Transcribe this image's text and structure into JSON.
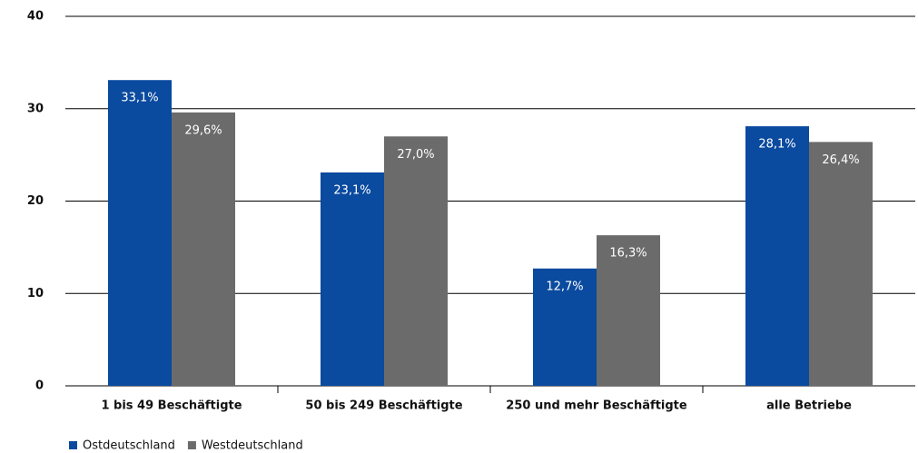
{
  "chart_data": {
    "type": "bar",
    "categories": [
      "1 bis 49 Beschäftigte",
      "50 bis 249 Beschäftigte",
      "250 und mehr Beschäftigte",
      "alle Betriebe"
    ],
    "series": [
      {
        "name": "Ostdeutschland",
        "color": "#0a4a9f",
        "values": [
          33.1,
          23.1,
          12.7,
          28.1
        ],
        "value_labels": [
          "33,1%",
          "23,1%",
          "12,7%",
          "28,1%"
        ]
      },
      {
        "name": "Westdeutschland",
        "color": "#6b6b6b",
        "values": [
          29.6,
          27.0,
          16.3,
          26.4
        ],
        "value_labels": [
          "29,6%",
          "27,0%",
          "16,3%",
          "26,4%"
        ]
      }
    ],
    "ylim": [
      0,
      40
    ],
    "yticks": [
      0,
      10,
      20,
      30,
      40
    ],
    "grid": true,
    "legend": "bottom-left"
  }
}
